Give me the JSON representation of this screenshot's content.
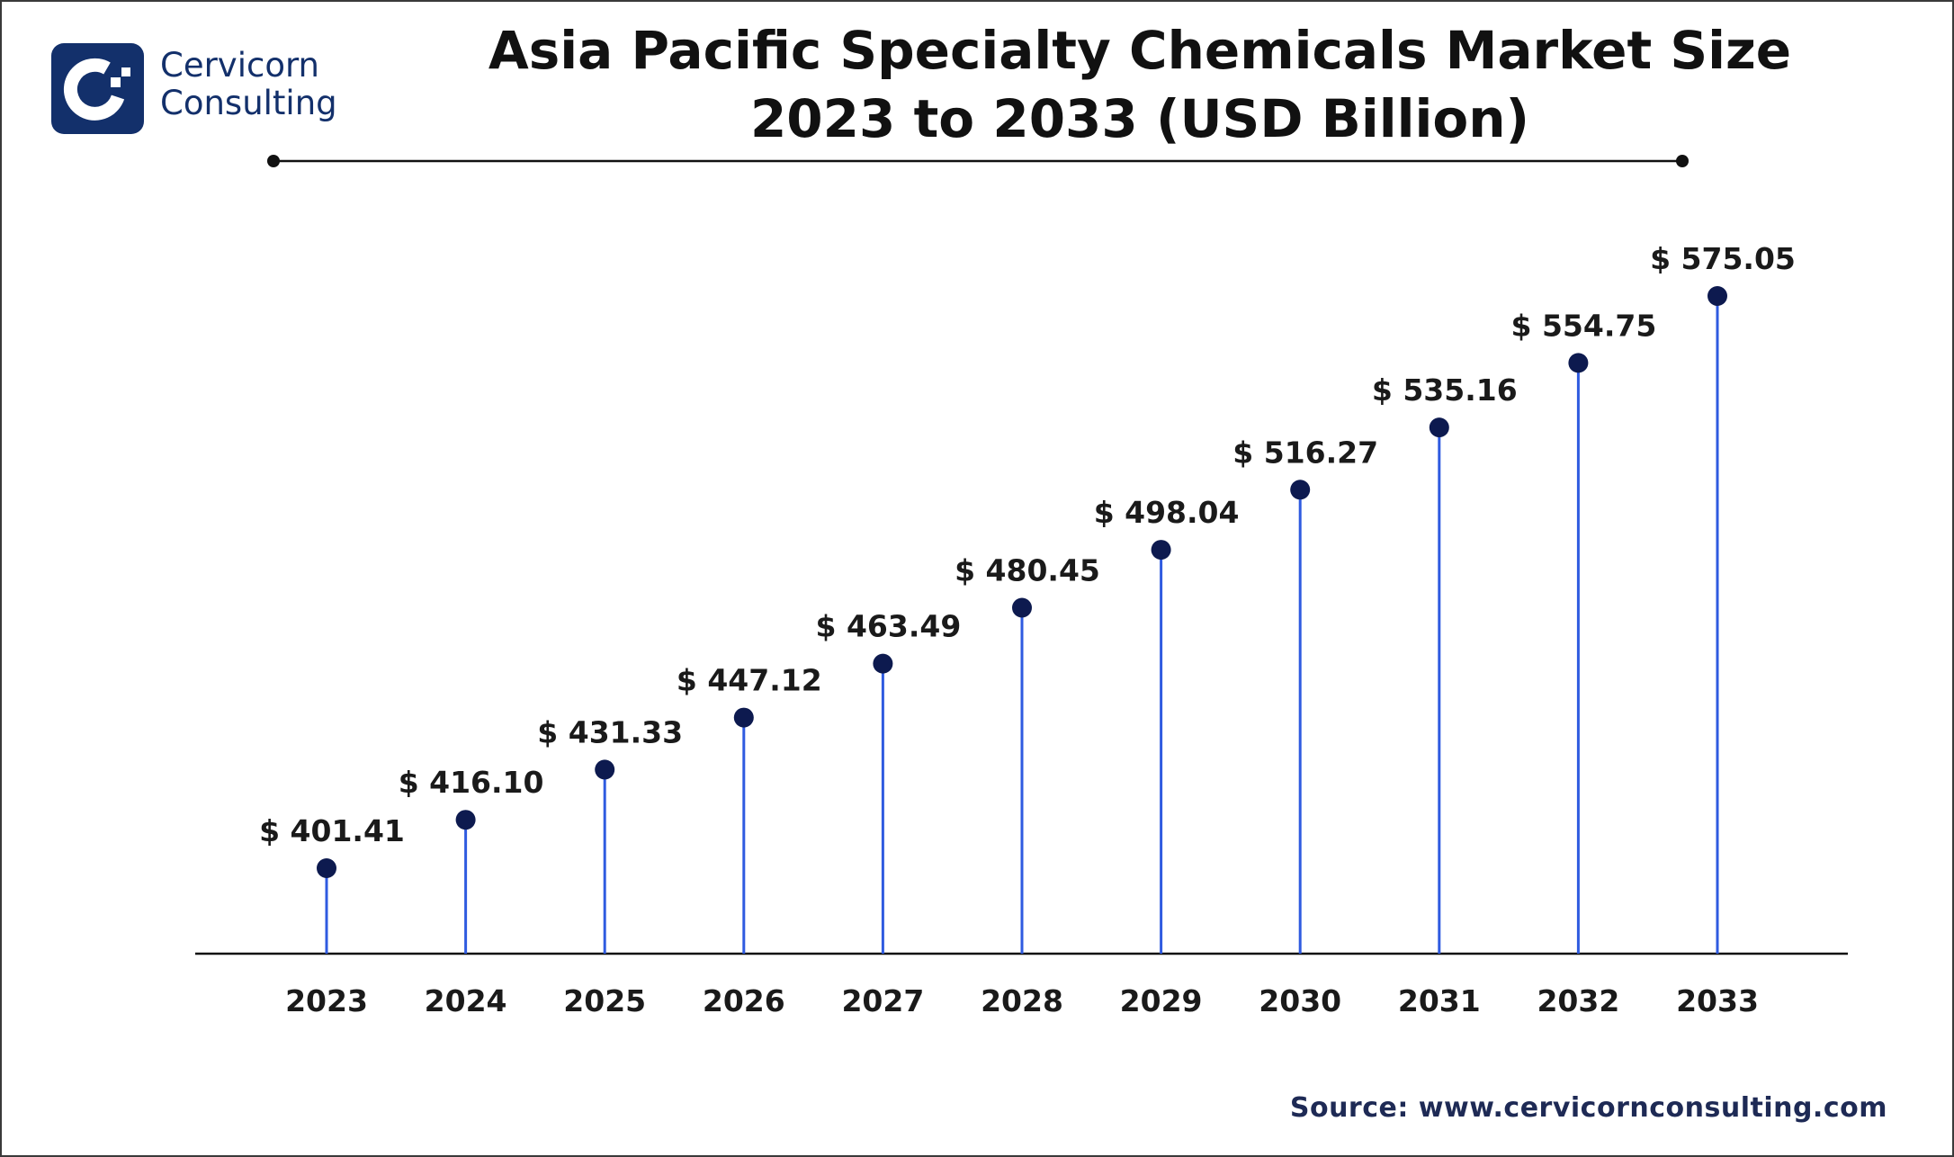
{
  "brand": {
    "line1": "Cervicorn",
    "line2": "Consulting"
  },
  "source": "Source: www.cervicornconsulting.com",
  "colors": {
    "stem": "#2f5be0",
    "dot": "#0d1a4f",
    "text": "#1a1a1a",
    "brand": "#13306b"
  },
  "chart_data": {
    "type": "lollipop",
    "title": "Asia Pacific Specialty Chemicals Market Size",
    "subtitle": "2023 to 2033 (USD Billion)",
    "categories": [
      "2023",
      "2024",
      "2025",
      "2026",
      "2027",
      "2028",
      "2029",
      "2030",
      "2031",
      "2032",
      "2033"
    ],
    "values": [
      401.41,
      416.1,
      431.33,
      447.12,
      463.49,
      480.45,
      498.04,
      516.27,
      535.16,
      554.75,
      575.05
    ],
    "labels": [
      "$ 401.41",
      "$ 416.10",
      "$ 431.33",
      "$ 447.12",
      "$ 463.49",
      "$ 480.45",
      "$ 498.04",
      "$ 516.27",
      "$ 535.16",
      "$ 554.75",
      "$ 575.05"
    ],
    "grid": false,
    "legend": "none"
  }
}
